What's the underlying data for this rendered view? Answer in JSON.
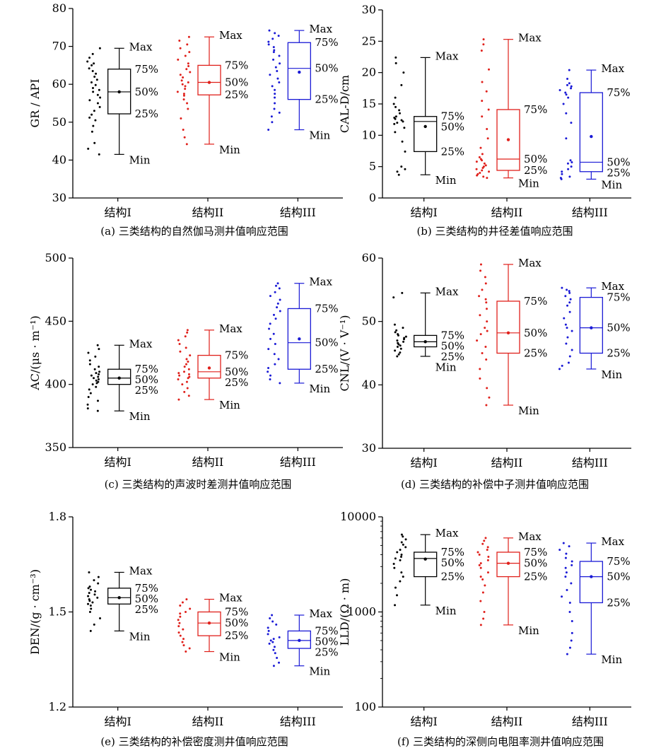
{
  "chart_data": [
    {
      "id": "a",
      "type": "box",
      "caption": "(a) 三类结构的自然伽马测井值响应范围",
      "ylabel": "GR / API",
      "ylim": [
        30,
        80
      ],
      "yticks": [
        30,
        40,
        50,
        60,
        70,
        80
      ],
      "categories": [
        "结构I",
        "结构II",
        "结构III"
      ],
      "colors": [
        "#000000",
        "#e0201b",
        "#1a1ad6"
      ],
      "boxes": [
        {
          "min": 41.5,
          "q1": 52.2,
          "median": 58.0,
          "q3": 64.0,
          "max": 69.5,
          "mean": 58.0
        },
        {
          "min": 44.2,
          "q1": 57.2,
          "median": 60.5,
          "q3": 65.0,
          "max": 72.5,
          "mean": 60.5
        },
        {
          "min": 48.0,
          "q1": 56.0,
          "median": 64.2,
          "q3": 71.0,
          "max": 74.2,
          "mean": 63.2
        }
      ],
      "points": [
        [
          41.5,
          43.0,
          44.5,
          47.5,
          49.0,
          50.5,
          51.2,
          52.0,
          53.0,
          54.0,
          55.0,
          55.8,
          56.5,
          57.2,
          58.0,
          58.5,
          59.0,
          59.8,
          60.5,
          61.2,
          62.0,
          62.8,
          63.5,
          64.2,
          65.0,
          65.5,
          66.0,
          67.0,
          68.0,
          69.5
        ],
        [
          44.2,
          46.0,
          48.0,
          51.0,
          53.5,
          55.0,
          56.0,
          57.0,
          57.5,
          58.0,
          58.8,
          59.5,
          60.0,
          60.5,
          61.0,
          61.8,
          62.5,
          63.2,
          64.0,
          64.8,
          65.5,
          66.5,
          67.5,
          68.5,
          69.5,
          70.5,
          71.5,
          72.5
        ],
        [
          48.0,
          50.0,
          51.5,
          52.5,
          53.5,
          55.0,
          56.5,
          57.5,
          58.5,
          59.5,
          60.5,
          61.5,
          62.5,
          63.5,
          64.5,
          65.5,
          66.5,
          67.5,
          68.5,
          69.0,
          69.8,
          70.5,
          71.2,
          72.0,
          72.8,
          73.5,
          74.2
        ]
      ]
    },
    {
      "id": "b",
      "type": "box",
      "caption": "(b) 三类结构的井径差值响应范围",
      "ylabel": "CAL-D/cm",
      "ylim": [
        0,
        30
      ],
      "yticks": [
        0,
        5,
        10,
        15,
        20,
        25,
        30
      ],
      "categories": [
        "结构I",
        "结构II",
        "结构III"
      ],
      "colors": [
        "#000000",
        "#e0201b",
        "#1a1ad6"
      ],
      "boxes": [
        {
          "min": 3.7,
          "q1": 7.4,
          "median": 12.2,
          "q3": 13.0,
          "max": 22.4,
          "mean": 11.4
        },
        {
          "min": 3.2,
          "q1": 4.4,
          "median": 6.2,
          "q3": 14.1,
          "max": 25.3,
          "mean": 9.3
        },
        {
          "min": 3.0,
          "q1": 4.2,
          "median": 5.7,
          "q3": 16.8,
          "max": 20.4,
          "mean": 9.8
        }
      ],
      "points": [
        [
          3.7,
          4.2,
          4.6,
          5.0,
          7.4,
          9.0,
          10.5,
          11.2,
          11.8,
          12.0,
          12.2,
          12.4,
          12.6,
          12.8,
          13.0,
          13.5,
          14.0,
          14.5,
          15.0,
          16.0,
          18.0,
          20.0,
          21.5,
          22.4
        ],
        [
          3.2,
          3.4,
          3.6,
          3.8,
          4.0,
          4.2,
          4.4,
          4.6,
          4.8,
          5.0,
          5.2,
          5.5,
          5.8,
          6.0,
          6.2,
          6.5,
          7.0,
          8.0,
          9.5,
          11.0,
          13.0,
          14.1,
          15.5,
          17.0,
          18.5,
          20.5,
          23.5,
          24.5,
          25.3
        ],
        [
          3.0,
          3.2,
          3.4,
          3.8,
          4.2,
          4.6,
          5.0,
          5.5,
          5.7,
          6.0,
          9.5,
          12.0,
          13.5,
          15.0,
          16.0,
          16.5,
          16.8,
          17.2,
          17.5,
          17.8,
          18.0,
          18.3,
          19.0,
          20.4
        ]
      ]
    },
    {
      "id": "c",
      "type": "box",
      "caption": "(c) 三类结构的声波时差测井值响应范围",
      "ylabel": "AC/(μs · m⁻¹)",
      "ylim": [
        350,
        500
      ],
      "yticks": [
        350,
        400,
        450,
        500
      ],
      "categories": [
        "结构I",
        "结构II",
        "结构III"
      ],
      "colors": [
        "#000000",
        "#e0201b",
        "#1a1ad6"
      ],
      "boxes": [
        {
          "min": 379.0,
          "q1": 400.0,
          "median": 405.0,
          "q3": 412.0,
          "max": 431.0,
          "mean": 405.0
        },
        {
          "min": 388.0,
          "q1": 405.0,
          "median": 410.0,
          "q3": 423.0,
          "max": 443.0,
          "mean": 413.0
        },
        {
          "min": 401.0,
          "q1": 412.0,
          "median": 433.0,
          "q3": 460.0,
          "max": 480.0,
          "mean": 436.0
        }
      ],
      "points": [
        [
          379.0,
          381.0,
          384.0,
          387.0,
          390.0,
          393.0,
          396.0,
          398.0,
          400.0,
          401.0,
          402.0,
          403.0,
          404.0,
          405.0,
          406.0,
          407.0,
          408.0,
          409.0,
          410.0,
          412.0,
          414.0,
          416.0,
          419.0,
          422.0,
          425.0,
          428.0,
          431.0
        ],
        [
          388.0,
          391.0,
          394.0,
          397.0,
          400.0,
          402.0,
          404.0,
          405.0,
          406.0,
          407.0,
          408.0,
          409.0,
          410.0,
          412.0,
          414.0,
          416.0,
          418.0,
          420.0,
          423.0,
          426.0,
          429.0,
          432.0,
          435.0,
          438.0,
          441.0,
          443.0
        ],
        [
          401.0,
          404.0,
          407.0,
          410.0,
          413.0,
          416.0,
          420.0,
          424.0,
          428.0,
          432.0,
          436.0,
          440.0,
          444.0,
          448.0,
          452.0,
          455.0,
          458.0,
          461.0,
          464.0,
          467.0,
          470.0,
          473.0,
          476.0,
          478.0,
          480.0
        ]
      ]
    },
    {
      "id": "d",
      "type": "box",
      "caption": "(d) 三类结构的补偿中子测井值响应范围",
      "ylabel": "CNL/(V · V⁻¹)",
      "ylim": [
        30,
        60
      ],
      "yticks": [
        30,
        40,
        50,
        60
      ],
      "categories": [
        "结构I",
        "结构II",
        "结构III"
      ],
      "colors": [
        "#000000",
        "#e0201b",
        "#1a1ad6"
      ],
      "boxes": [
        {
          "min": 44.5,
          "q1": 46.0,
          "median": 46.8,
          "q3": 47.8,
          "max": 54.5,
          "mean": 46.8
        },
        {
          "min": 36.8,
          "q1": 45.0,
          "median": 48.2,
          "q3": 53.2,
          "max": 59.0,
          "mean": 48.2
        },
        {
          "min": 42.5,
          "q1": 45.0,
          "median": 49.0,
          "q3": 53.8,
          "max": 55.3,
          "mean": 49.0
        }
      ],
      "points": [
        [
          44.5,
          44.8,
          45.1,
          45.4,
          45.7,
          46.0,
          46.2,
          46.4,
          46.6,
          46.8,
          47.0,
          47.2,
          47.4,
          47.6,
          47.8,
          48.0,
          48.3,
          48.6,
          49.0,
          49.5,
          53.8,
          54.5
        ],
        [
          36.8,
          38.0,
          39.5,
          41.0,
          42.5,
          44.0,
          45.0,
          46.0,
          47.0,
          48.0,
          48.5,
          49.0,
          50.0,
          51.0,
          52.0,
          53.0,
          53.5,
          54.0,
          55.0,
          56.0,
          57.0,
          58.0,
          59.0
        ],
        [
          42.5,
          43.0,
          43.5,
          44.5,
          45.5,
          46.5,
          47.5,
          48.5,
          49.0,
          49.5,
          50.5,
          51.5,
          52.5,
          53.0,
          53.5,
          54.0,
          54.5,
          54.8,
          55.0,
          55.3
        ]
      ]
    },
    {
      "id": "e",
      "type": "box",
      "caption": "(e) 三类结构的补偿密度测井值响应范围",
      "ylabel": "DEN/(g · cm⁻³)",
      "ylim": [
        1.2,
        1.8
      ],
      "yticks": [
        1.2,
        1.5,
        1.8
      ],
      "categories": [
        "结构I",
        "结构II",
        "结构III"
      ],
      "colors": [
        "#000000",
        "#e0201b",
        "#1a1ad6"
      ],
      "boxes": [
        {
          "min": 1.44,
          "q1": 1.525,
          "median": 1.545,
          "q3": 1.575,
          "max": 1.625,
          "mean": 1.545
        },
        {
          "min": 1.375,
          "q1": 1.425,
          "median": 1.465,
          "q3": 1.5,
          "max": 1.54,
          "mean": 1.465
        },
        {
          "min": 1.33,
          "q1": 1.385,
          "median": 1.41,
          "q3": 1.44,
          "max": 1.49,
          "mean": 1.41
        }
      ],
      "points": [
        [
          1.44,
          1.46,
          1.48,
          1.5,
          1.51,
          1.52,
          1.525,
          1.53,
          1.535,
          1.54,
          1.545,
          1.55,
          1.555,
          1.56,
          1.565,
          1.57,
          1.575,
          1.58,
          1.59,
          1.6,
          1.61,
          1.625
        ],
        [
          1.375,
          1.385,
          1.395,
          1.405,
          1.415,
          1.425,
          1.435,
          1.445,
          1.455,
          1.465,
          1.475,
          1.485,
          1.495,
          1.5,
          1.51,
          1.52,
          1.53,
          1.54
        ],
        [
          1.33,
          1.34,
          1.355,
          1.37,
          1.38,
          1.39,
          1.4,
          1.405,
          1.41,
          1.415,
          1.42,
          1.43,
          1.44,
          1.45,
          1.46,
          1.47,
          1.48,
          1.49
        ]
      ]
    },
    {
      "id": "f",
      "type": "box",
      "caption": "(f) 三类结构的深侧向电阻率测井值响应范围",
      "ylabel": "LLD/(Ω · m)",
      "yscale": "log",
      "ylim": [
        100,
        10000
      ],
      "yticks": [
        100,
        1000,
        10000
      ],
      "categories": [
        "结构I",
        "结构II",
        "结构III"
      ],
      "colors": [
        "#000000",
        "#e0201b",
        "#1a1ad6"
      ],
      "boxes": [
        {
          "min": 1180,
          "q1": 2350,
          "median": 3650,
          "q3": 4250,
          "max": 6500,
          "mean": 3600
        },
        {
          "min": 730,
          "q1": 2350,
          "median": 3250,
          "q3": 4250,
          "max": 6000,
          "mean": 3250
        },
        {
          "min": 360,
          "q1": 1250,
          "median": 2350,
          "q3": 3400,
          "max": 5300,
          "mean": 2350
        }
      ],
      "points": [
        [
          1180,
          1500,
          1800,
          2100,
          2350,
          2600,
          2900,
          3200,
          3500,
          3650,
          3800,
          4000,
          4250,
          4500,
          4800,
          5100,
          5400,
          5800,
          6200,
          6500
        ],
        [
          730,
          850,
          1000,
          1300,
          1600,
          1900,
          2200,
          2350,
          2600,
          2900,
          3100,
          3250,
          3500,
          3800,
          4000,
          4250,
          4500,
          4800,
          5200,
          5600,
          6000
        ],
        [
          360,
          420,
          500,
          600,
          800,
          1000,
          1250,
          1450,
          1700,
          2000,
          2350,
          2600,
          2900,
          3100,
          3400,
          3700,
          4100,
          4500,
          4900,
          5300
        ]
      ]
    }
  ],
  "quantile_labels": {
    "max": "Max",
    "q3": "75%",
    "median": "50%",
    "q1": "25%",
    "min": "Min"
  }
}
